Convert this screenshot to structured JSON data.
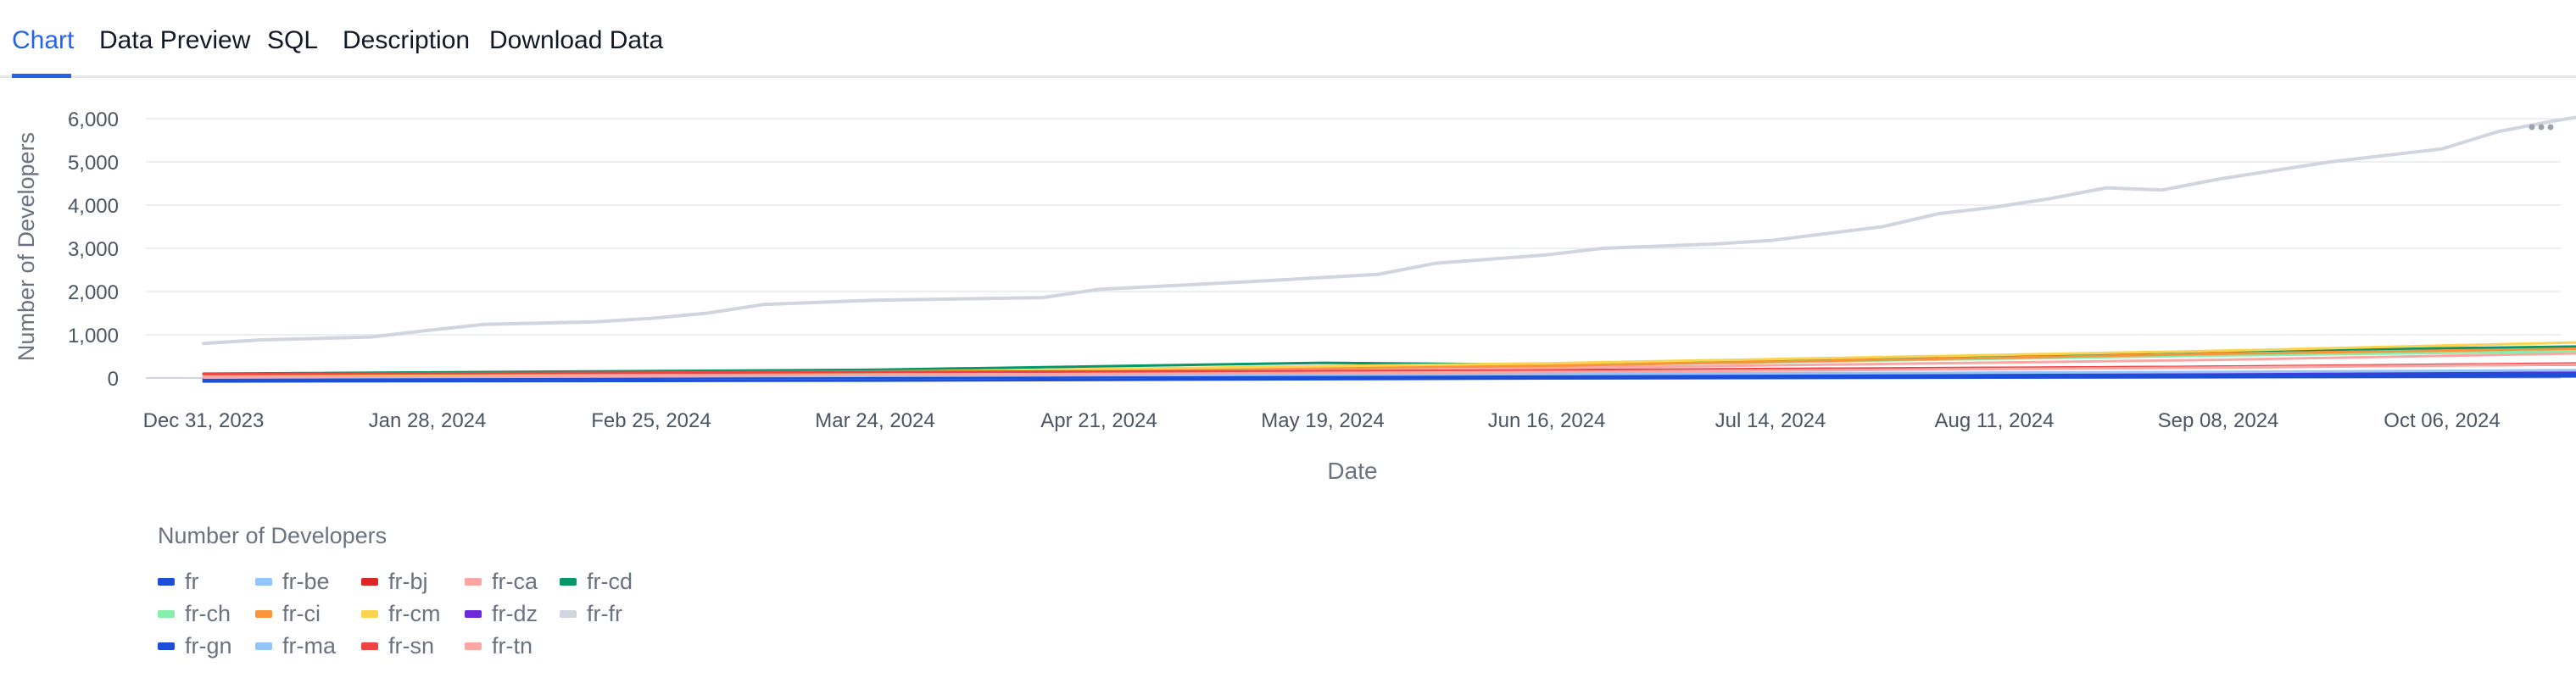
{
  "tabs": [
    {
      "label": "Chart",
      "active": true
    },
    {
      "label": "Data Preview",
      "active": false
    },
    {
      "label": "SQL",
      "active": false
    },
    {
      "label": "Description",
      "active": false
    },
    {
      "label": "Download Data",
      "active": false
    }
  ],
  "menu_icon": "more-horizontal-icon",
  "chart_data": {
    "type": "line",
    "xlabel": "Date",
    "ylabel": "Number of Developers",
    "ylim": [
      0,
      6500
    ],
    "yticks": [
      "0",
      "1,000",
      "2,000",
      "3,000",
      "4,000",
      "5,000",
      "6,000"
    ],
    "xticks": [
      "Dec 31, 2023",
      "Jan 28, 2024",
      "Feb 25, 2024",
      "Mar 24, 2024",
      "Apr 21, 2024",
      "May 19, 2024",
      "Jun 16, 2024",
      "Jul 14, 2024",
      "Aug 11, 2024",
      "Sep 08, 2024",
      "Oct 06, 2024"
    ],
    "xrange": [
      "2023-12-31",
      "2024-11-01"
    ],
    "grid": true,
    "legend_title": "Number of Developers",
    "legend_position": "bottom-left",
    "series": [
      {
        "name": "fr",
        "color": "#1d4ed8",
        "points": [
          [
            "2023-12-31",
            -80
          ],
          [
            "2024-03-24",
            -60
          ],
          [
            "2024-06-16",
            -10
          ],
          [
            "2024-09-08",
            20
          ],
          [
            "2024-11-01",
            40
          ]
        ]
      },
      {
        "name": "fr-be",
        "color": "#93c5fd",
        "points": [
          [
            "2023-12-31",
            30
          ],
          [
            "2024-03-24",
            60
          ],
          [
            "2024-06-16",
            100
          ],
          [
            "2024-09-08",
            130
          ],
          [
            "2024-11-01",
            160
          ]
        ]
      },
      {
        "name": "fr-bj",
        "color": "#dc2626",
        "points": [
          [
            "2023-12-31",
            80
          ],
          [
            "2024-03-24",
            120
          ],
          [
            "2024-06-16",
            180
          ],
          [
            "2024-09-08",
            260
          ],
          [
            "2024-11-01",
            320
          ]
        ]
      },
      {
        "name": "fr-ca",
        "color": "#fca5a5",
        "points": [
          [
            "2023-12-31",
            20
          ],
          [
            "2024-03-24",
            90
          ],
          [
            "2024-06-16",
            230
          ],
          [
            "2024-09-08",
            420
          ],
          [
            "2024-11-01",
            600
          ]
        ]
      },
      {
        "name": "fr-cd",
        "color": "#059669",
        "points": [
          [
            "2023-12-31",
            100
          ],
          [
            "2024-03-24",
            190
          ],
          [
            "2024-05-19",
            350
          ],
          [
            "2024-06-16",
            310
          ],
          [
            "2024-09-08",
            620
          ],
          [
            "2024-11-01",
            750
          ]
        ]
      },
      {
        "name": "fr-ch",
        "color": "#86efac",
        "points": [
          [
            "2023-12-31",
            40
          ],
          [
            "2024-03-24",
            130
          ],
          [
            "2024-06-16",
            290
          ],
          [
            "2024-09-08",
            520
          ],
          [
            "2024-11-01",
            640
          ]
        ]
      },
      {
        "name": "fr-ci",
        "color": "#fb923c",
        "points": [
          [
            "2023-12-31",
            60
          ],
          [
            "2024-03-24",
            150
          ],
          [
            "2024-06-16",
            280
          ],
          [
            "2024-09-08",
            560
          ],
          [
            "2024-11-01",
            700
          ]
        ]
      },
      {
        "name": "fr-cm",
        "color": "#fcd34d",
        "points": [
          [
            "2023-12-31",
            50
          ],
          [
            "2024-03-24",
            140
          ],
          [
            "2024-06-16",
            340
          ],
          [
            "2024-09-08",
            630
          ],
          [
            "2024-11-01",
            860
          ]
        ]
      },
      {
        "name": "fr-dz",
        "color": "#6d28d9",
        "points": [
          [
            "2023-12-31",
            5
          ],
          [
            "2024-03-24",
            25
          ],
          [
            "2024-06-16",
            55
          ],
          [
            "2024-09-08",
            95
          ],
          [
            "2024-11-01",
            130
          ]
        ]
      },
      {
        "name": "fr-fr",
        "color": "#d1d5e0",
        "points": [
          [
            "2023-12-31",
            800
          ],
          [
            "2024-01-07",
            880
          ],
          [
            "2024-01-21",
            950
          ],
          [
            "2024-01-28",
            1100
          ],
          [
            "2024-02-04",
            1240
          ],
          [
            "2024-02-18",
            1300
          ],
          [
            "2024-02-25",
            1380
          ],
          [
            "2024-03-03",
            1500
          ],
          [
            "2024-03-10",
            1700
          ],
          [
            "2024-03-24",
            1800
          ],
          [
            "2024-04-14",
            1860
          ],
          [
            "2024-04-21",
            2050
          ],
          [
            "2024-05-12",
            2250
          ],
          [
            "2024-05-26",
            2400
          ],
          [
            "2024-06-02",
            2650
          ],
          [
            "2024-06-16",
            2850
          ],
          [
            "2024-06-23",
            3000
          ],
          [
            "2024-07-07",
            3100
          ],
          [
            "2024-07-14",
            3180
          ],
          [
            "2024-07-28",
            3500
          ],
          [
            "2024-08-04",
            3800
          ],
          [
            "2024-08-11",
            3950
          ],
          [
            "2024-08-18",
            4150
          ],
          [
            "2024-08-25",
            4400
          ],
          [
            "2024-09-01",
            4350
          ],
          [
            "2024-09-08",
            4600
          ],
          [
            "2024-09-22",
            5000
          ],
          [
            "2024-09-29",
            5150
          ],
          [
            "2024-10-06",
            5300
          ],
          [
            "2024-10-13",
            5700
          ],
          [
            "2024-10-20",
            5950
          ],
          [
            "2024-10-27",
            6150
          ]
        ]
      },
      {
        "name": "fr-gn",
        "color": "#1d4ed8",
        "points": [
          [
            "2023-12-31",
            -30
          ],
          [
            "2024-03-24",
            0
          ],
          [
            "2024-06-16",
            40
          ],
          [
            "2024-09-08",
            70
          ],
          [
            "2024-11-01",
            90
          ]
        ]
      },
      {
        "name": "fr-ma",
        "color": "#93c5fd",
        "points": [
          [
            "2023-12-31",
            10
          ],
          [
            "2024-03-24",
            50
          ],
          [
            "2024-06-16",
            90
          ],
          [
            "2024-09-08",
            140
          ],
          [
            "2024-11-01",
            190
          ]
        ]
      },
      {
        "name": "fr-sn",
        "color": "#ef4444",
        "points": [
          [
            "2023-12-31",
            90
          ],
          [
            "2024-03-24",
            140
          ],
          [
            "2024-06-16",
            170
          ],
          [
            "2024-09-08",
            260
          ],
          [
            "2024-11-01",
            350
          ]
        ]
      },
      {
        "name": "fr-tn",
        "color": "#fca5a5",
        "points": [
          [
            "2023-12-31",
            15
          ],
          [
            "2024-03-24",
            70
          ],
          [
            "2024-06-16",
            140
          ],
          [
            "2024-09-08",
            240
          ],
          [
            "2024-11-01",
            330
          ]
        ]
      }
    ]
  }
}
